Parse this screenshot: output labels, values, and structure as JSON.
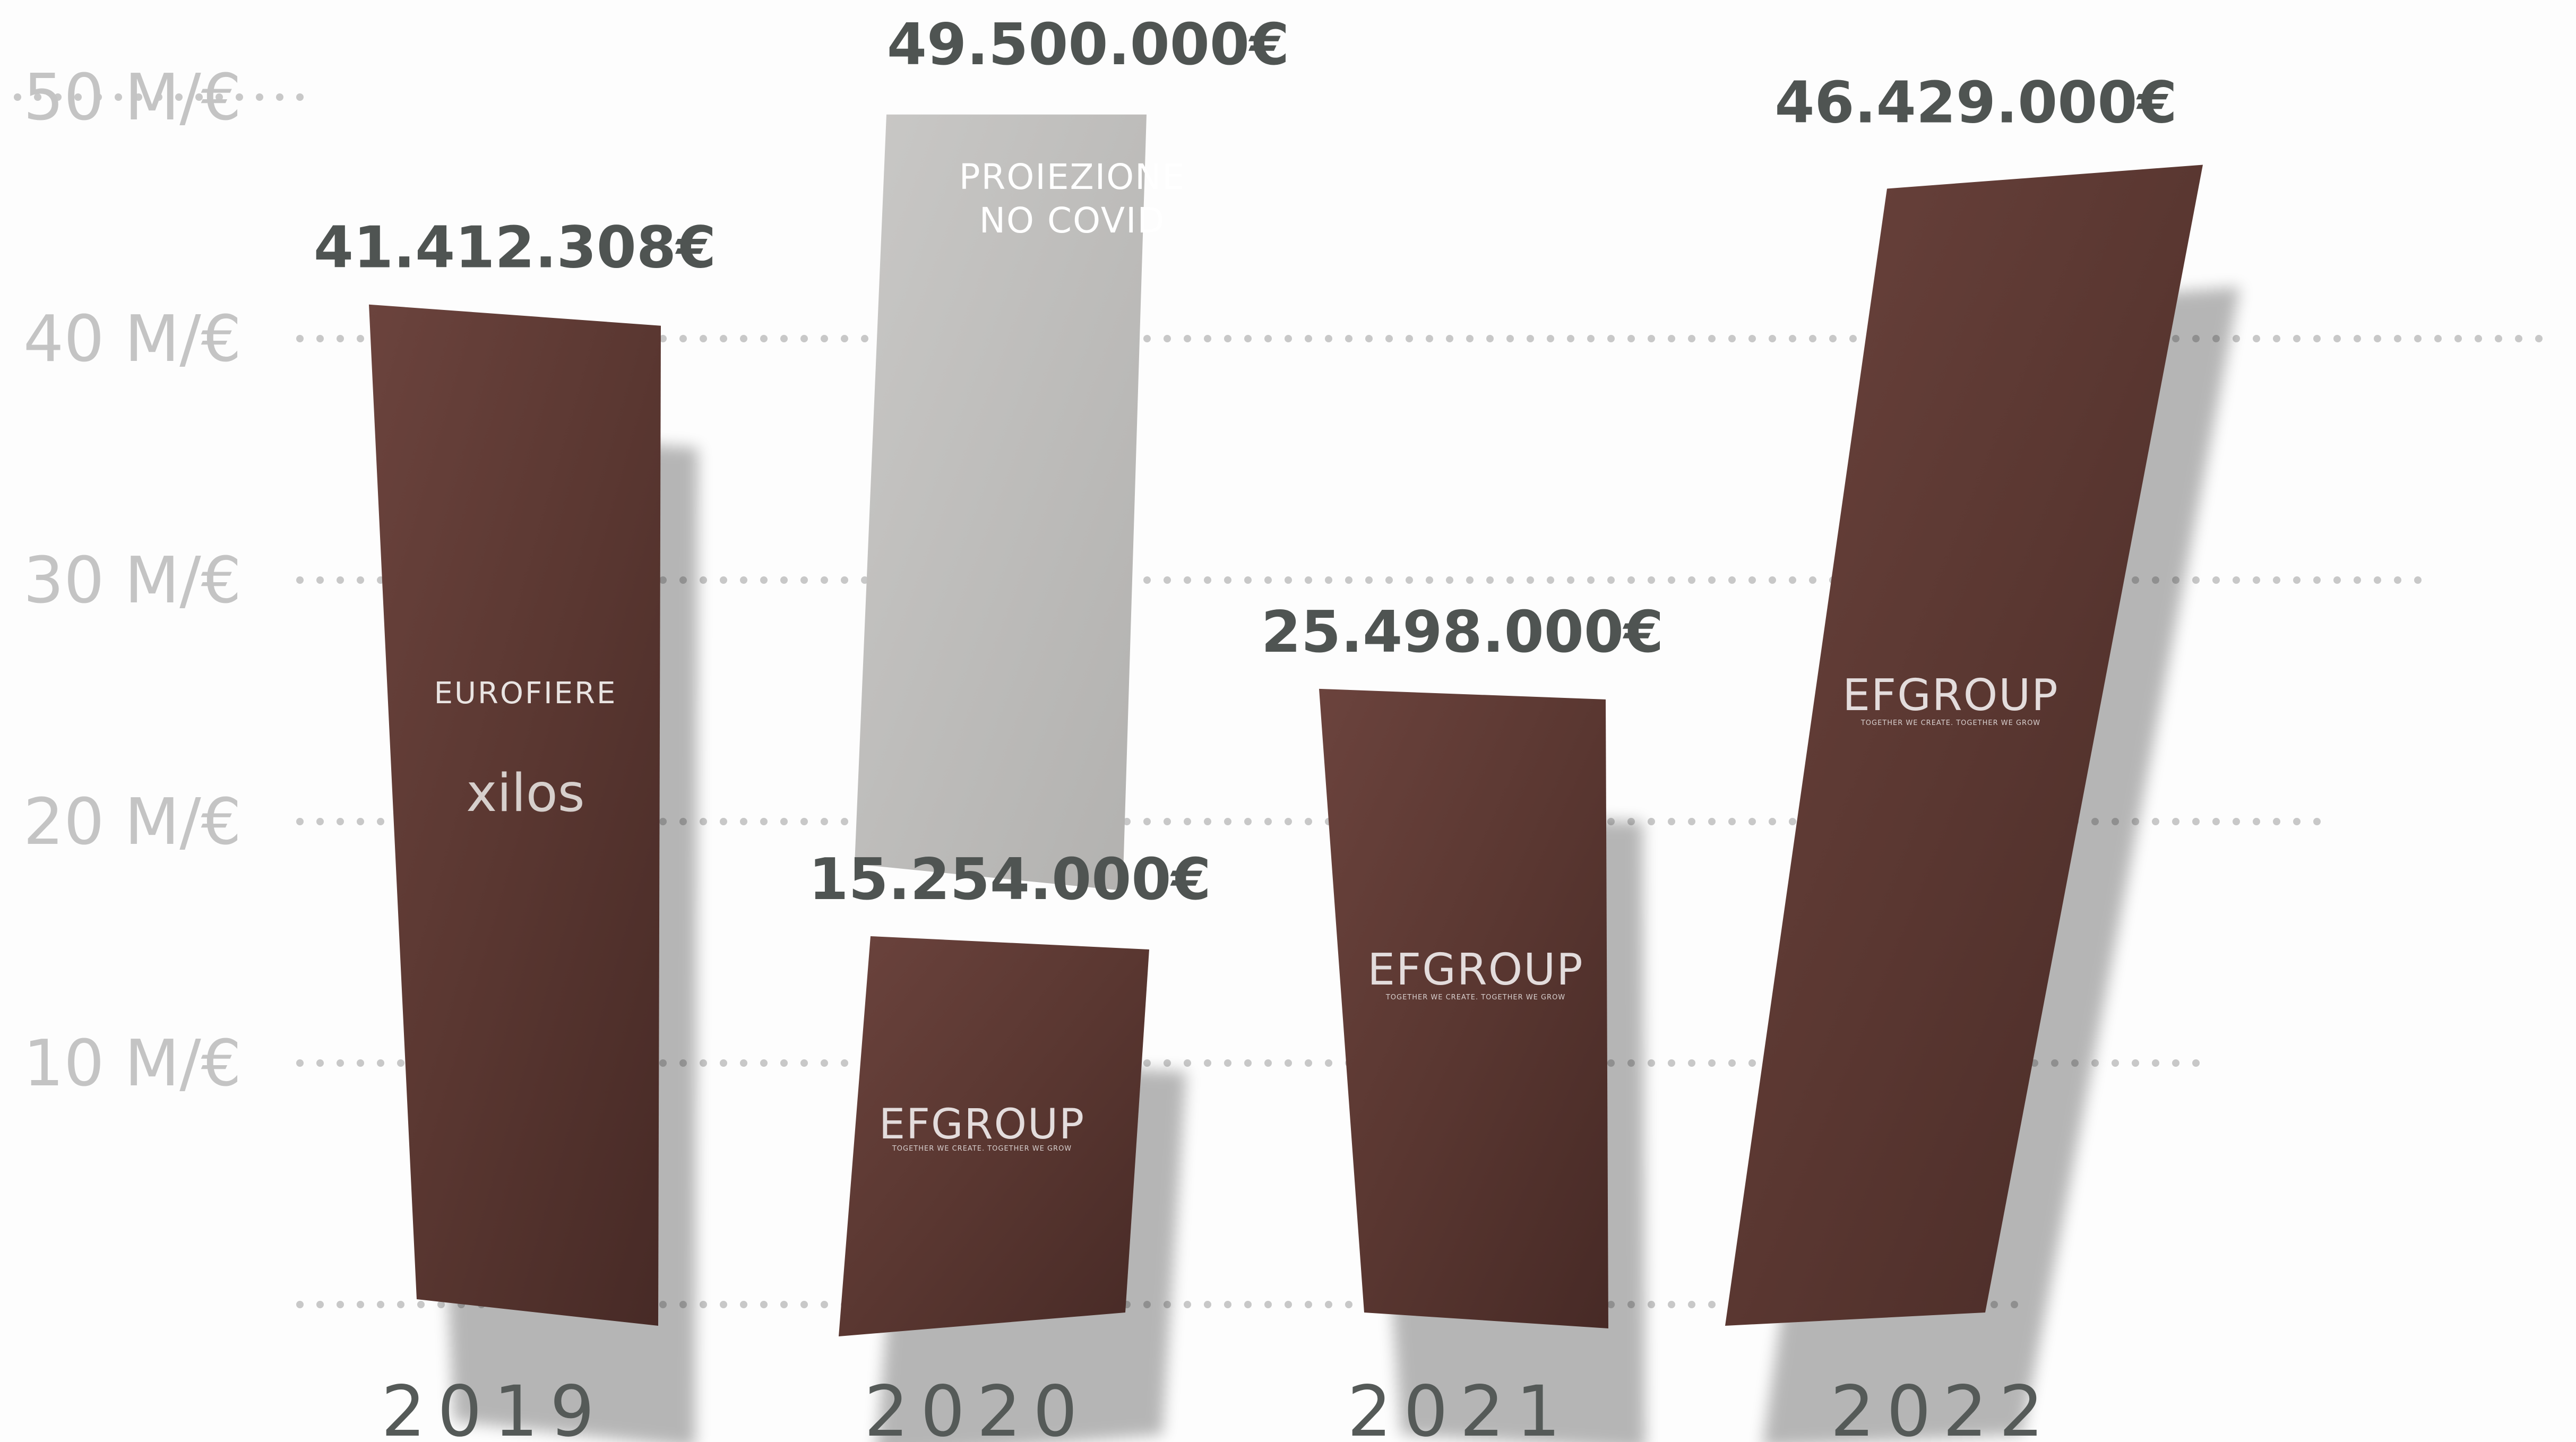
{
  "chart_data": {
    "type": "bar",
    "categories": [
      "2019",
      "2020",
      "2021",
      "2022"
    ],
    "values": [
      41412308,
      15254000,
      25498000,
      46429000
    ],
    "value_labels": [
      "41.412.308€",
      "15.254.000€",
      "25.498.000€",
      "46.429.000€"
    ],
    "projection": {
      "category": "2020",
      "value": 49500000,
      "value_label": "49.500.000€",
      "label_lines": [
        "PROIEZIONE",
        "NO COVID"
      ]
    },
    "y_ticks": [
      {
        "value": 10000000,
        "label": "10 M/€"
      },
      {
        "value": 20000000,
        "label": "20 M/€"
      },
      {
        "value": 30000000,
        "label": "30 M/€"
      },
      {
        "value": 40000000,
        "label": "40 M/€"
      },
      {
        "value": 50000000,
        "label": "50 M/€"
      }
    ],
    "ylim": [
      0,
      50000000
    ],
    "grid": "dotted horizontal",
    "title": "",
    "xlabel": "",
    "ylabel": "",
    "bar_logos": [
      {
        "category": "2019",
        "lines": [
          "EUROFIERE",
          "xilos"
        ]
      },
      {
        "category": "2020",
        "lines": [
          "EFGROUP",
          "TOGETHER WE CREATE. TOGETHER WE GROW"
        ]
      },
      {
        "category": "2021",
        "lines": [
          "EFGROUP",
          "TOGETHER WE CREATE. TOGETHER WE GROW"
        ]
      },
      {
        "category": "2022",
        "lines": [
          "EFGROUP",
          "TOGETHER WE CREATE. TOGETHER WE GROW"
        ]
      }
    ]
  },
  "colors": {
    "bar": "#5a3731",
    "bar_light": "#6e4640",
    "projection_bar": "#bdbcba",
    "grid_dots": "#c8c8c8",
    "tick_text": "#c4c4c4",
    "label_text": "#4f5452"
  }
}
